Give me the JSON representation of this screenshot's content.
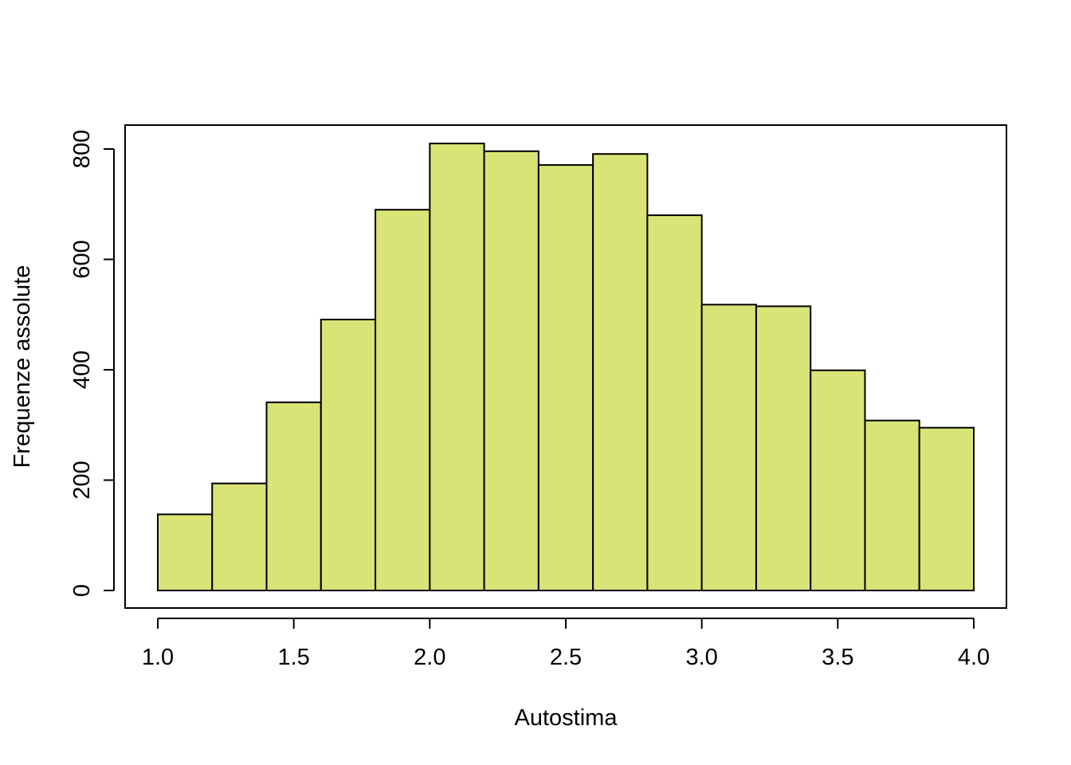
{
  "chart_data": {
    "type": "bar",
    "subtype": "histogram",
    "xlabel": "Autostima",
    "ylabel": "Frequenze assolute",
    "bin_edges": [
      1.0,
      1.2,
      1.4,
      1.6,
      1.8,
      2.0,
      2.2,
      2.4,
      2.6,
      2.8,
      3.0,
      3.2,
      3.4,
      3.6,
      3.8,
      4.0
    ],
    "values": [
      138,
      194,
      341,
      491,
      690,
      810,
      796,
      771,
      791,
      680,
      518,
      515,
      399,
      308,
      295
    ],
    "xlim": [
      1.0,
      4.0
    ],
    "ylim": [
      0,
      800
    ],
    "xticks": [
      "1.0",
      "1.5",
      "2.0",
      "2.5",
      "3.0",
      "3.5",
      "4.0"
    ],
    "xtick_values": [
      1.0,
      1.5,
      2.0,
      2.5,
      3.0,
      3.5,
      4.0
    ],
    "yticks": [
      "0",
      "200",
      "400",
      "600",
      "800"
    ],
    "ytick_values": [
      0,
      200,
      400,
      600,
      800
    ],
    "bar_color": "#d9e476",
    "edge_color": "#000000",
    "grid": false,
    "legend": "none"
  }
}
